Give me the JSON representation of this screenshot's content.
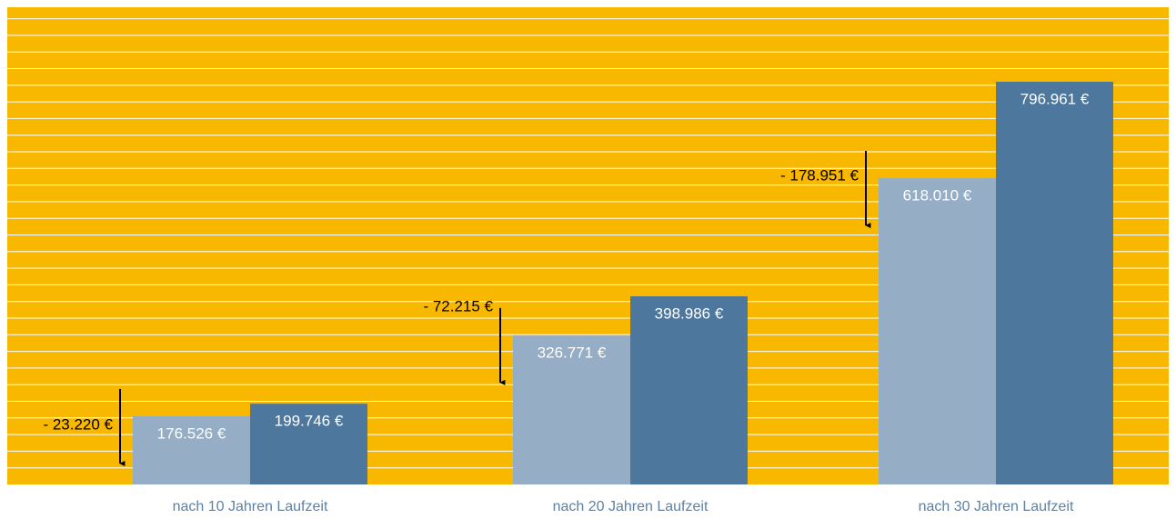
{
  "chart_data": {
    "type": "bar",
    "categories": [
      "nach 10 Jahren Laufzeit",
      "nach 20 Jahren Laufzeit",
      "nach 30 Jahren Laufzeit"
    ],
    "series": [
      {
        "color": "#95adc5",
        "values": [
          176526,
          326771,
          618010
        ],
        "value_labels": [
          "176.526 €",
          "326.771 €",
          "618.010 €"
        ]
      },
      {
        "color": "#4e779e",
        "values": [
          199746,
          398986,
          796961
        ],
        "value_labels": [
          "199.746 €",
          "398.986 €",
          "796.961 €"
        ]
      }
    ],
    "annotations": {
      "values": [
        -23220,
        -72215,
        -178951
      ],
      "labels": [
        "- 23.220 €",
        "- 72.215 €",
        "- 178.951 €"
      ]
    },
    "ylim": [
      50000,
      935000
    ],
    "background": "#f9b800",
    "grid": true
  }
}
